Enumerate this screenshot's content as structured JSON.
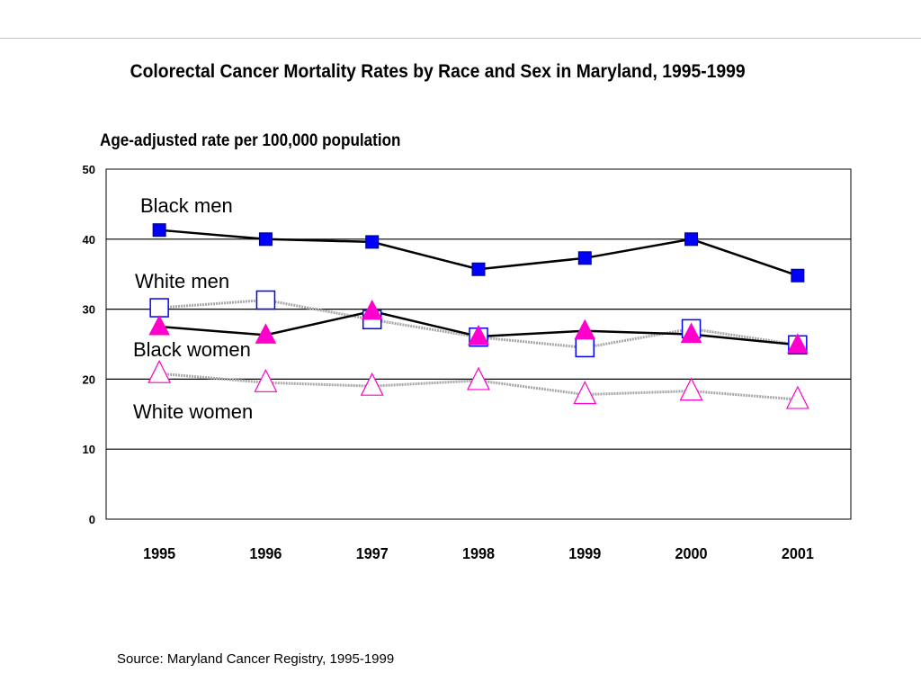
{
  "title": "Colorectal Cancer Mortality Rates by Race and Sex in Maryland, 1995-1999",
  "source": "Source: Maryland Cancer Registry, 1995-1999",
  "chart_data": {
    "type": "line",
    "ylabel": "Age-adjusted rate per 100,000 population",
    "xlabel": "",
    "x": [
      "1995",
      "1996",
      "1997",
      "1998",
      "1999",
      "2000",
      "2001"
    ],
    "ylim": [
      0,
      50
    ],
    "yticks": [
      0,
      10,
      20,
      30,
      40,
      50
    ],
    "grid": true,
    "legend": "inline labels inside plot area, left side",
    "series": [
      {
        "name": "Black men",
        "values": [
          41.3,
          40.0,
          39.6,
          35.7,
          37.3,
          40.0,
          34.8
        ],
        "marker": "filled-square",
        "color": "#0000ff",
        "line": "#000000"
      },
      {
        "name": "White men",
        "values": [
          30.2,
          31.3,
          28.5,
          26.0,
          24.5,
          27.2,
          24.9
        ],
        "marker": "open-square",
        "color": "#0000ff",
        "line": "#a8a8a8"
      },
      {
        "name": "Black women",
        "values": [
          27.5,
          26.3,
          29.7,
          26.1,
          26.9,
          26.4,
          24.9
        ],
        "marker": "filled-triangle",
        "color": "#ff00cc",
        "line": "#000000"
      },
      {
        "name": "White women",
        "values": [
          20.8,
          19.5,
          19.0,
          19.8,
          17.8,
          18.3,
          17.1
        ],
        "marker": "open-triangle",
        "color": "#ff00cc",
        "line": "#a8a8a8"
      }
    ]
  }
}
